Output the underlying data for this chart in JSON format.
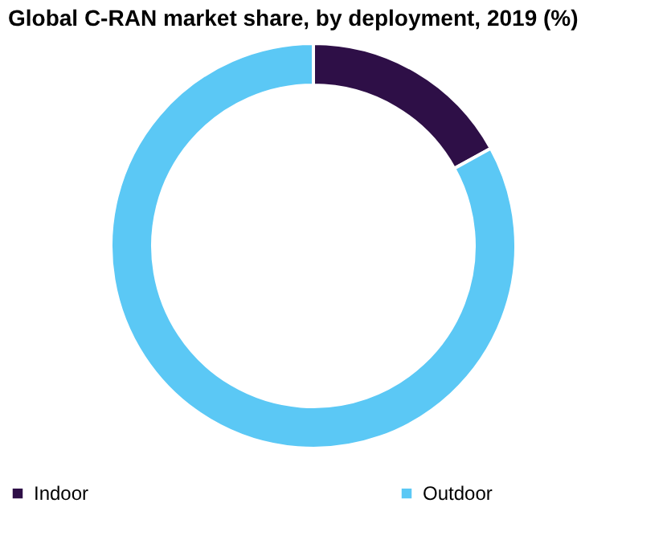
{
  "chart_data": {
    "type": "donut",
    "title": "Global C-RAN market share, by deployment, 2019 (%)",
    "categories": [
      "Indoor",
      "Outdoor"
    ],
    "values": [
      17,
      83
    ],
    "colors": [
      "#2e0f47",
      "#5bc8f5"
    ],
    "legend": "bottom"
  }
}
